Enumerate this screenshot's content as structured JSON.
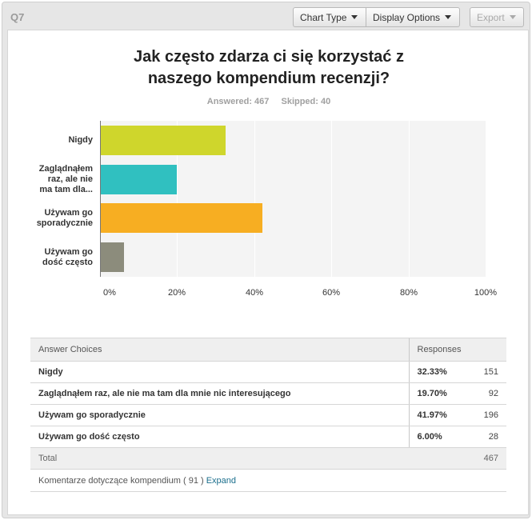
{
  "header": {
    "question_label": "Q7",
    "chart_type_label": "Chart Type",
    "display_options_label": "Display Options",
    "export_label": "Export"
  },
  "stats": {
    "answered": "Answered: 467",
    "skipped": "Skipped: 40"
  },
  "chart_data": {
    "type": "bar",
    "orientation": "horizontal",
    "title": "Jak często zdarza ci się korzystać z naszego kompendium recenzji?",
    "title_lines": [
      "Jak często zdarza ci się korzystać z",
      "naszego kompendium recenzji?"
    ],
    "categories": [
      "Nigdy",
      "Zaglądnąłem raz, ale nie ma tam dla...",
      "Używam go sporadycznie",
      "Używam go dość często"
    ],
    "category_lines": [
      [
        "Nigdy"
      ],
      [
        "Zaglądnąłem",
        "raz, ale nie",
        "ma tam dla..."
      ],
      [
        "Używam go",
        "sporadycznie"
      ],
      [
        "Używam go",
        "dość często"
      ]
    ],
    "values": [
      32.33,
      19.7,
      41.97,
      6.0
    ],
    "colors": [
      "#cfd62c",
      "#30c0c0",
      "#f7ae22",
      "#8c8c7c"
    ],
    "xlim": [
      0,
      100
    ],
    "x_ticks": [
      "0%",
      "20%",
      "40%",
      "60%",
      "80%",
      "100%"
    ],
    "grid": true
  },
  "table": {
    "headers": {
      "choices": "Answer Choices",
      "responses": "Responses"
    },
    "rows": [
      {
        "choice": "Nigdy",
        "percent": "32.33%",
        "count": "151"
      },
      {
        "choice": "Zaglądnąłem raz, ale nie ma tam dla mnie nic interesującego",
        "percent": "19.70%",
        "count": "92"
      },
      {
        "choice": "Używam go sporadycznie",
        "percent": "41.97%",
        "count": "196"
      },
      {
        "choice": "Używam go dość często",
        "percent": "6.00%",
        "count": "28"
      }
    ],
    "total_label": "Total",
    "total_count": "467",
    "comments_label": "Komentarze dotyczące kompendium ( 91 )",
    "expand_label": "Expand"
  }
}
